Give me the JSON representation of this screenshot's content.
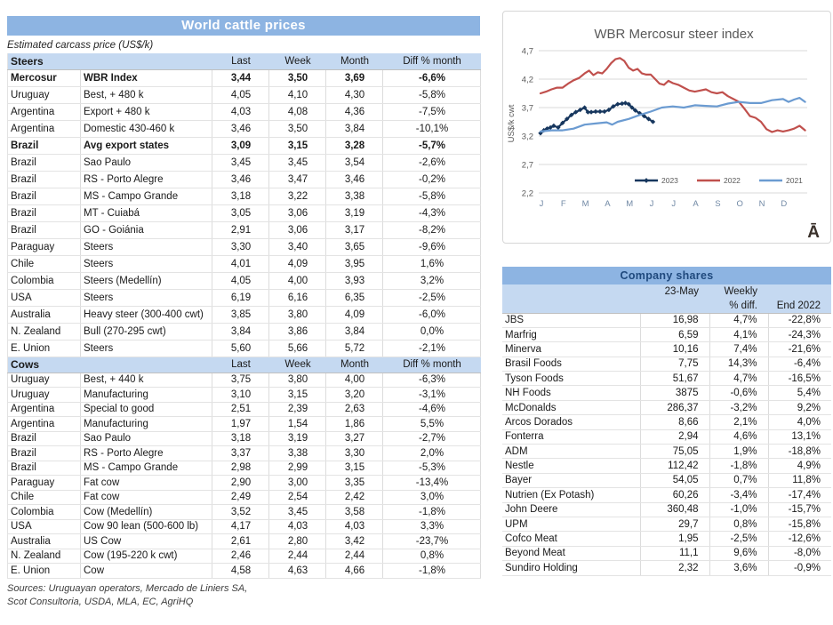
{
  "colors": {
    "header_bar": "#8DB4E2",
    "subheader_row": "#C5D9F1",
    "series_2023": "#17375E",
    "series_2022": "#C0504D",
    "series_2021": "#6B9BD1"
  },
  "left_panel": {
    "title": "World cattle prices",
    "subtitle": "Estimated carcass price (US$/k)",
    "columns": [
      "Last",
      "Week",
      "Month",
      "Diff % month"
    ],
    "steers": {
      "label": "Steers",
      "rows": [
        {
          "country": "Mercosur",
          "desc": "WBR Index",
          "last": "3,44",
          "week": "3,50",
          "month": "3,69",
          "diff": "-6,6%",
          "bold": true
        },
        {
          "country": "Uruguay",
          "desc": "Best, + 480 k",
          "last": "4,05",
          "week": "4,10",
          "month": "4,30",
          "diff": "-5,8%"
        },
        {
          "country": "Argentina",
          "desc": "Export + 480 k",
          "last": "4,03",
          "week": "4,08",
          "month": "4,36",
          "diff": "-7,5%"
        },
        {
          "country": "Argentina",
          "desc": "Domestic 430-460 k",
          "last": "3,46",
          "week": "3,50",
          "month": "3,84",
          "diff": "-10,1%"
        },
        {
          "country": "Brazil",
          "desc": "Avg export states",
          "last": "3,09",
          "week": "3,15",
          "month": "3,28",
          "diff": "-5,7%",
          "bold": true
        },
        {
          "country": "Brazil",
          "desc": "Sao Paulo",
          "last": "3,45",
          "week": "3,45",
          "month": "3,54",
          "diff": "-2,6%"
        },
        {
          "country": "Brazil",
          "desc": "RS - Porto Alegre",
          "last": "3,46",
          "week": "3,47",
          "month": "3,46",
          "diff": "-0,2%"
        },
        {
          "country": "Brazil",
          "desc": "MS - Campo Grande",
          "last": "3,18",
          "week": "3,22",
          "month": "3,38",
          "diff": "-5,8%"
        },
        {
          "country": "Brazil",
          "desc": "MT - Cuiabá",
          "last": "3,05",
          "week": "3,06",
          "month": "3,19",
          "diff": "-4,3%"
        },
        {
          "country": "Brazil",
          "desc": "GO - Goiánia",
          "last": "2,91",
          "week": "3,06",
          "month": "3,17",
          "diff": "-8,2%"
        },
        {
          "country": "Paraguay",
          "desc": "Steers",
          "last": "3,30",
          "week": "3,40",
          "month": "3,65",
          "diff": "-9,6%"
        },
        {
          "country": "Chile",
          "desc": "Steers",
          "last": "4,01",
          "week": "4,09",
          "month": "3,95",
          "diff": "1,6%"
        },
        {
          "country": "Colombia",
          "desc": "Steers (Medellín)",
          "last": "4,05",
          "week": "4,00",
          "month": "3,93",
          "diff": "3,2%"
        },
        {
          "country": "USA",
          "desc": "Steers",
          "last": "6,19",
          "week": "6,16",
          "month": "6,35",
          "diff": "-2,5%"
        },
        {
          "country": "Australia",
          "desc": "Heavy steer (300-400 cwt)",
          "last": "3,85",
          "week": "3,80",
          "month": "4,09",
          "diff": "-6,0%"
        },
        {
          "country": "N. Zealand",
          "desc": "Bull (270-295 cwt)",
          "last": "3,84",
          "week": "3,86",
          "month": "3,84",
          "diff": "0,0%"
        },
        {
          "country": "E. Union",
          "desc": "Steers",
          "last": "5,60",
          "week": "5,66",
          "month": "5,72",
          "diff": "-2,1%"
        }
      ]
    },
    "cows": {
      "label": "Cows",
      "rows": [
        {
          "country": "Uruguay",
          "desc": "Best, + 440 k",
          "last": "3,75",
          "week": "3,80",
          "month": "4,00",
          "diff": "-6,3%"
        },
        {
          "country": "Uruguay",
          "desc": "Manufacturing",
          "last": "3,10",
          "week": "3,15",
          "month": "3,20",
          "diff": "-3,1%"
        },
        {
          "country": "Argentina",
          "desc": "Special to good",
          "last": "2,51",
          "week": "2,39",
          "month": "2,63",
          "diff": "-4,6%"
        },
        {
          "country": "Argentina",
          "desc": "Manufacturing",
          "last": "1,97",
          "week": "1,54",
          "month": "1,86",
          "diff": "5,5%"
        },
        {
          "country": "Brazil",
          "desc": "Sao Paulo",
          "last": "3,18",
          "week": "3,19",
          "month": "3,27",
          "diff": "-2,7%"
        },
        {
          "country": "Brazil",
          "desc": "RS - Porto Alegre",
          "last": "3,37",
          "week": "3,38",
          "month": "3,30",
          "diff": "2,0%"
        },
        {
          "country": "Brazil",
          "desc": "MS - Campo Grande",
          "last": "2,98",
          "week": "2,99",
          "month": "3,15",
          "diff": "-5,3%"
        },
        {
          "country": "Paraguay",
          "desc": "Fat cow",
          "last": "2,90",
          "week": "3,00",
          "month": "3,35",
          "diff": "-13,4%"
        },
        {
          "country": "Chile",
          "desc": "Fat cow",
          "last": "2,49",
          "week": "2,54",
          "month": "2,42",
          "diff": "3,0%"
        },
        {
          "country": "Colombia",
          "desc": "Cow (Medellín)",
          "last": "3,52",
          "week": "3,45",
          "month": "3,58",
          "diff": "-1,8%"
        },
        {
          "country": "USA",
          "desc": "Cow 90 lean (500-600 lb)",
          "last": "4,17",
          "week": "4,03",
          "month": "4,03",
          "diff": "3,3%"
        },
        {
          "country": "Australia",
          "desc": "US Cow",
          "last": "2,61",
          "week": "2,80",
          "month": "3,42",
          "diff": "-23,7%"
        },
        {
          "country": "N. Zealand",
          "desc": "Cow (195-220 k cwt)",
          "last": "2,46",
          "week": "2,44",
          "month": "2,44",
          "diff": "0,8%"
        },
        {
          "country": "E. Union",
          "desc": "Cow",
          "last": "4,58",
          "week": "4,63",
          "month": "4,66",
          "diff": "-1,8%"
        }
      ]
    },
    "sources_line1": "Sources: Uruguayan operators, Mercado de Liniers SA,",
    "sources_line2": "Scot Consultoria, USDA, MLA, EC, AgriHQ"
  },
  "chart_data": {
    "type": "line",
    "title": "WBR Mercosur steer index",
    "xlabel": "",
    "ylabel": "US$/k cwt",
    "ylim": [
      2.2,
      4.7
    ],
    "yticks": [
      4.7,
      4.2,
      3.7,
      3.2,
      2.7,
      2.2
    ],
    "ytick_labels": [
      "4,7",
      "4,2",
      "3,7",
      "3,2",
      "2,7",
      "2,2"
    ],
    "xtick_labels": [
      "J",
      "F",
      "M",
      "A",
      "M",
      "J",
      "J",
      "A",
      "S",
      "O",
      "N",
      "D"
    ],
    "x_range": [
      0,
      12
    ],
    "grid": true,
    "legend_position": "inside-bottom-right",
    "watermark": "Ā",
    "series": [
      {
        "name": "2023",
        "color": "#17375E",
        "marker": true,
        "x": [
          0,
          0.15,
          0.3,
          0.45,
          0.6,
          0.8,
          1,
          1.2,
          1.4,
          1.6,
          1.8,
          2,
          2.15,
          2.3,
          2.5,
          2.7,
          2.9,
          3.1,
          3.3,
          3.5,
          3.7,
          3.85,
          4,
          4.15,
          4.3,
          4.5,
          4.7,
          4.9,
          5.1
        ],
        "y": [
          3.25,
          3.3,
          3.33,
          3.35,
          3.38,
          3.35,
          3.43,
          3.5,
          3.57,
          3.62,
          3.66,
          3.7,
          3.62,
          3.62,
          3.63,
          3.63,
          3.63,
          3.66,
          3.72,
          3.76,
          3.77,
          3.78,
          3.76,
          3.7,
          3.65,
          3.6,
          3.55,
          3.5,
          3.45
        ]
      },
      {
        "name": "2022",
        "color": "#C0504D",
        "marker": false,
        "x": [
          0,
          0.25,
          0.5,
          0.75,
          1,
          1.25,
          1.5,
          1.75,
          2,
          2.2,
          2.4,
          2.6,
          2.8,
          3,
          3.2,
          3.4,
          3.6,
          3.8,
          4,
          4.2,
          4.4,
          4.6,
          4.8,
          5,
          5.2,
          5.4,
          5.6,
          5.8,
          6,
          6.25,
          6.5,
          6.75,
          7,
          7.25,
          7.5,
          7.75,
          8,
          8.25,
          8.5,
          8.75,
          9,
          9.25,
          9.5,
          9.75,
          10,
          10.25,
          10.5,
          10.75,
          11,
          11.25,
          11.5,
          11.75,
          12
        ],
        "y": [
          3.95,
          3.98,
          4.02,
          4.05,
          4.05,
          4.12,
          4.18,
          4.22,
          4.3,
          4.35,
          4.27,
          4.32,
          4.3,
          4.38,
          4.48,
          4.55,
          4.57,
          4.52,
          4.4,
          4.35,
          4.38,
          4.3,
          4.28,
          4.28,
          4.2,
          4.12,
          4.1,
          4.17,
          4.13,
          4.1,
          4.05,
          4.0,
          3.98,
          4.0,
          4.02,
          3.97,
          3.95,
          3.97,
          3.9,
          3.85,
          3.8,
          3.68,
          3.55,
          3.52,
          3.45,
          3.32,
          3.27,
          3.3,
          3.28,
          3.3,
          3.33,
          3.38,
          3.3
        ]
      },
      {
        "name": "2021",
        "color": "#6B9BD1",
        "marker": false,
        "x": [
          0,
          0.5,
          1,
          1.5,
          2,
          2.5,
          3,
          3.25,
          3.5,
          4,
          4.5,
          5,
          5.5,
          6,
          6.5,
          7,
          7.5,
          8,
          8.5,
          9,
          9.5,
          10,
          10.5,
          11,
          11.25,
          11.5,
          11.75,
          12
        ],
        "y": [
          3.28,
          3.3,
          3.3,
          3.33,
          3.4,
          3.42,
          3.44,
          3.4,
          3.45,
          3.5,
          3.57,
          3.63,
          3.7,
          3.72,
          3.7,
          3.74,
          3.73,
          3.72,
          3.77,
          3.8,
          3.78,
          3.78,
          3.83,
          3.85,
          3.8,
          3.84,
          3.87,
          3.8
        ]
      }
    ]
  },
  "company_shares": {
    "title": "Company shares",
    "columns": {
      "date": "23-May",
      "weekly_line1": "Weekly",
      "weekly_line2": "% diff.",
      "end": "End 2022"
    },
    "rows": [
      {
        "name": "JBS",
        "price": "16,98",
        "weekly": "4,7%",
        "end": "-22,8%"
      },
      {
        "name": "Marfrig",
        "price": "6,59",
        "weekly": "4,1%",
        "end": "-24,3%"
      },
      {
        "name": "Minerva",
        "price": "10,16",
        "weekly": "7,4%",
        "end": "-21,6%"
      },
      {
        "name": "Brasil Foods",
        "price": "7,75",
        "weekly": "14,3%",
        "end": "-6,4%"
      },
      {
        "name": "Tyson Foods",
        "price": "51,67",
        "weekly": "4,7%",
        "end": "-16,5%"
      },
      {
        "name": "NH Foods",
        "price": "3875",
        "weekly": "-0,6%",
        "end": "5,4%"
      },
      {
        "name": "McDonalds",
        "price": "286,37",
        "weekly": "-3,2%",
        "end": "9,2%"
      },
      {
        "name": "Arcos Dorados",
        "price": "8,66",
        "weekly": "2,1%",
        "end": "4,0%"
      },
      {
        "name": "Fonterra",
        "price": "2,94",
        "weekly": "4,6%",
        "end": "13,1%"
      },
      {
        "name": "ADM",
        "price": "75,05",
        "weekly": "1,9%",
        "end": "-18,8%"
      },
      {
        "name": "Nestle",
        "price": "112,42",
        "weekly": "-1,8%",
        "end": "4,9%"
      },
      {
        "name": "Bayer",
        "price": "54,05",
        "weekly": "0,7%",
        "end": "11,8%"
      },
      {
        "name": "Nutrien (Ex Potash)",
        "price": "60,26",
        "weekly": "-3,4%",
        "end": "-17,4%"
      },
      {
        "name": "John Deere",
        "price": "360,48",
        "weekly": "-1,0%",
        "end": "-15,7%"
      },
      {
        "name": "UPM",
        "price": "29,7",
        "weekly": "0,8%",
        "end": "-15,8%"
      },
      {
        "name": "Cofco Meat",
        "price": "1,95",
        "weekly": "-2,5%",
        "end": "-12,6%"
      },
      {
        "name": "Beyond Meat",
        "price": "11,1",
        "weekly": "9,6%",
        "end": "-8,0%"
      },
      {
        "name": "Sundiro Holding",
        "price": "2,32",
        "weekly": "3,6%",
        "end": "-0,9%"
      }
    ]
  }
}
